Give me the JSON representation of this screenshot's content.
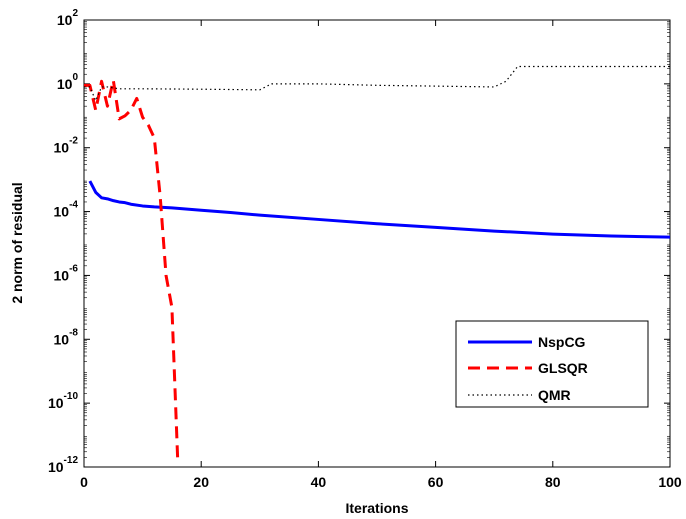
{
  "chart_data": {
    "type": "line",
    "title": "",
    "xlabel": "Iterations",
    "ylabel": "2 norm of residual",
    "xlim": [
      0,
      100
    ],
    "ylim_log10": [
      -12,
      2
    ],
    "yscale": "log",
    "grid": false,
    "legend_position": "lower-right",
    "x_ticks": [
      "0",
      "20",
      "40",
      "60",
      "80",
      "100"
    ],
    "y_ticks": [
      {
        "base": "10",
        "exp": "2"
      },
      {
        "base": "10",
        "exp": "0"
      },
      {
        "base": "10",
        "exp": "-2"
      },
      {
        "base": "10",
        "exp": "-4"
      },
      {
        "base": "10",
        "exp": "-6"
      },
      {
        "base": "10",
        "exp": "-8"
      },
      {
        "base": "10",
        "exp": "-10"
      },
      {
        "base": "10",
        "exp": "-12"
      }
    ],
    "series": [
      {
        "name": "NspCG",
        "color": "#0000ff",
        "style": "solid",
        "x": [
          1,
          2,
          3,
          4,
          5,
          6,
          7,
          8,
          10,
          12,
          15,
          20,
          25,
          30,
          40,
          50,
          60,
          70,
          80,
          90,
          100
        ],
        "y": [
          0.0009,
          0.0004,
          0.00027,
          0.00025,
          0.00022,
          0.0002,
          0.00019,
          0.00017,
          0.00015,
          0.00014,
          0.00013,
          0.00011,
          9.38e-05,
          7.73e-05,
          5.67e-05,
          4.16e-05,
          3.19e-05,
          2.45e-05,
          1.96e-05,
          1.72e-05,
          1.58e-05
        ]
      },
      {
        "name": "GLSQR",
        "color": "#ff0000",
        "style": "dashed",
        "x": [
          0,
          1,
          2,
          3,
          4,
          5,
          6,
          7,
          8,
          9,
          10,
          11,
          12,
          13,
          14,
          15,
          16
        ],
        "y": [
          0.9,
          0.9,
          0.15,
          1.2,
          0.2,
          1.3,
          0.08,
          0.1,
          0.15,
          0.35,
          0.09,
          0.05,
          0.02,
          0.0003,
          1e-06,
          1e-07,
          1.5e-12
        ]
      },
      {
        "name": "QMR",
        "color": "#000000",
        "style": "dotted",
        "x": [
          0,
          1,
          2,
          3,
          4,
          5,
          6,
          8,
          10,
          20,
          30,
          32,
          34,
          40,
          50,
          60,
          70,
          72,
          74,
          80,
          90,
          100
        ],
        "y": [
          0.8,
          0.8,
          0.3,
          0.8,
          0.8,
          0.75,
          0.7,
          0.7,
          0.7,
          0.68,
          0.65,
          1.0,
          1.0,
          1.0,
          0.9,
          0.85,
          0.8,
          1.2,
          3.5,
          3.5,
          3.5,
          3.5
        ]
      }
    ]
  }
}
